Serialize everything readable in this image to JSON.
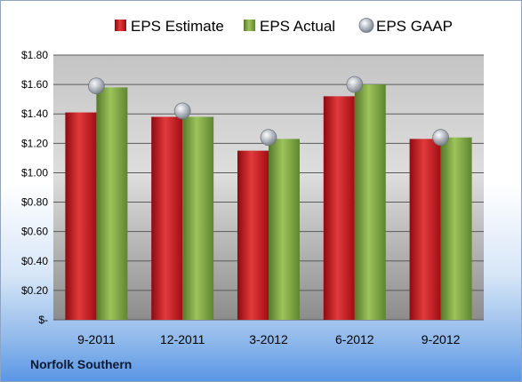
{
  "company": "Norfolk Southern",
  "chart_data": {
    "type": "bar",
    "categories": [
      "9-2011",
      "12-2011",
      "3-2012",
      "6-2012",
      "9-2012"
    ],
    "series": [
      {
        "name": "EPS Estimate",
        "values": [
          1.41,
          1.38,
          1.15,
          1.52,
          1.23
        ],
        "color": "#c0101a"
      },
      {
        "name": "EPS Actual",
        "values": [
          1.58,
          1.38,
          1.23,
          1.6,
          1.24
        ],
        "color": "#6f9a2f"
      },
      {
        "name": "EPS GAAP",
        "values": [
          1.59,
          1.42,
          1.24,
          1.6,
          1.24
        ],
        "color": "#a9b1bd",
        "style": "marker"
      }
    ],
    "ylim": [
      0,
      1.8
    ],
    "yticks": [
      0,
      0.2,
      0.4,
      0.6,
      0.8,
      1.0,
      1.2,
      1.4,
      1.6,
      1.8
    ],
    "ytick_labels": [
      "$-",
      "$0.20",
      "$0.40",
      "$0.60",
      "$0.80",
      "$1.00",
      "$1.20",
      "$1.40",
      "$1.60",
      "$1.80"
    ],
    "grid": true,
    "legend": "top"
  }
}
